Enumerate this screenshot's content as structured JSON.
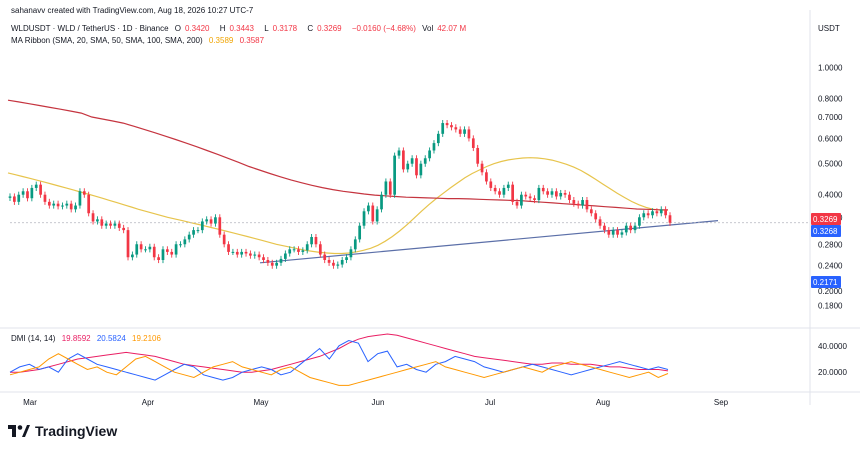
{
  "header": {
    "created": "sahanavv created with TradingView.com, Aug 18, 2026 10:27 UTC-7",
    "symbol": "WLDUSDT · WLD / TetherUS · 1D · Binance",
    "o_label": "O",
    "o_value": "0.3420",
    "h_label": "H",
    "h_value": "0.3443",
    "l_label": "L",
    "l_value": "0.3178",
    "c_label": "C",
    "c_value": "0.3269",
    "change": "−0.0160 (−4.68%)",
    "vol_label": "Vol",
    "vol_value": "42.07 M",
    "ma_label": "MA Ribbon (SMA, 20, SMA, 50, SMA, 100, SMA, 200)",
    "ma_val1": "0.3589",
    "ma_val2": "0.3587",
    "dmi_label": "DMI (14, 14)",
    "dmi_val1": "19.8592",
    "dmi_val2": "20.5824",
    "dmi_val3": "19.2106"
  },
  "brand": {
    "name": "TradingView"
  },
  "colors": {
    "up": "#089981",
    "down": "#f23645",
    "ma50": "#e7c44c",
    "ma200": "#c5343f",
    "trendline": "#5b6fa8",
    "dmi_plus": "#2962ff",
    "dmi_minus": "#ff9800",
    "adx": "#e91e63",
    "last_price": "#f23645",
    "trend_price": "#2962ff",
    "support": "#2962ff"
  },
  "chart_data": {
    "type": "candlestick",
    "title": "WLDUSDT · WLD / TetherUS · 1D · Binance",
    "currency": "USDT",
    "x_ticks": [
      "Mar",
      "Apr",
      "May",
      "Jun",
      "Jul",
      "Aug",
      "Sep"
    ],
    "y_ticks": [
      "1.0000",
      "0.8000",
      "0.7000",
      "0.6000",
      "0.5000",
      "0.4000",
      "0.3400",
      "0.2800",
      "0.2400",
      "0.2000",
      "0.1800"
    ],
    "y_scale": "log",
    "ylim": [
      0.16,
      1.15
    ],
    "price_labels": [
      {
        "value": "0.3269",
        "kind": "last"
      },
      {
        "value": "0.3268",
        "kind": "trendline"
      },
      {
        "value": "0.2171",
        "kind": "level"
      }
    ],
    "close_series": [
      0.395,
      0.38,
      0.4,
      0.41,
      0.39,
      0.42,
      0.43,
      0.4,
      0.38,
      0.37,
      0.375,
      0.368,
      0.37,
      0.375,
      0.36,
      0.37,
      0.41,
      0.4,
      0.35,
      0.33,
      0.335,
      0.32,
      0.325,
      0.32,
      0.325,
      0.315,
      0.31,
      0.255,
      0.26,
      0.28,
      0.27,
      0.27,
      0.275,
      0.255,
      0.25,
      0.27,
      0.265,
      0.26,
      0.28,
      0.28,
      0.29,
      0.3,
      0.31,
      0.31,
      0.33,
      0.335,
      0.325,
      0.34,
      0.3,
      0.28,
      0.265,
      0.265,
      0.26,
      0.265,
      0.262,
      0.258,
      0.26,
      0.255,
      0.25,
      0.245,
      0.24,
      0.245,
      0.252,
      0.262,
      0.27,
      0.27,
      0.265,
      0.268,
      0.28,
      0.295,
      0.28,
      0.26,
      0.25,
      0.245,
      0.24,
      0.242,
      0.25,
      0.255,
      0.27,
      0.29,
      0.32,
      0.355,
      0.37,
      0.33,
      0.36,
      0.4,
      0.44,
      0.4,
      0.53,
      0.55,
      0.48,
      0.5,
      0.52,
      0.46,
      0.5,
      0.52,
      0.55,
      0.58,
      0.62,
      0.67,
      0.66,
      0.65,
      0.64,
      0.62,
      0.64,
      0.6,
      0.56,
      0.5,
      0.47,
      0.44,
      0.42,
      0.41,
      0.4,
      0.42,
      0.43,
      0.38,
      0.37,
      0.4,
      0.395,
      0.39,
      0.385,
      0.42,
      0.41,
      0.4,
      0.41,
      0.395,
      0.405,
      0.4,
      0.385,
      0.375,
      0.37,
      0.385,
      0.36,
      0.35,
      0.335,
      0.32,
      0.31,
      0.3,
      0.31,
      0.3,
      0.305,
      0.32,
      0.31,
      0.32,
      0.34,
      0.35,
      0.345,
      0.355,
      0.35,
      0.36,
      0.345,
      0.3269
    ],
    "series": [
      {
        "name": "SMA 50",
        "values": [
          0.468,
          0.462,
          0.456,
          0.45,
          0.444,
          0.438,
          0.432,
          0.426,
          0.42,
          0.414,
          0.408,
          0.402,
          0.396,
          0.39,
          0.384,
          0.378,
          0.372,
          0.366,
          0.36,
          0.355,
          0.35,
          0.345,
          0.34,
          0.336,
          0.332,
          0.328,
          0.324,
          0.32,
          0.316,
          0.312,
          0.308,
          0.304,
          0.3,
          0.296,
          0.292,
          0.288,
          0.284,
          0.28,
          0.277,
          0.274,
          0.271,
          0.268,
          0.266,
          0.264,
          0.263,
          0.262,
          0.262,
          0.263,
          0.265,
          0.268,
          0.272,
          0.278,
          0.286,
          0.296,
          0.308,
          0.322,
          0.338,
          0.355,
          0.372,
          0.388,
          0.404,
          0.42,
          0.436,
          0.452,
          0.466,
          0.478,
          0.49,
          0.5,
          0.508,
          0.514,
          0.518,
          0.521,
          0.522,
          0.521,
          0.518,
          0.513,
          0.506,
          0.498,
          0.488,
          0.476,
          0.462,
          0.447,
          0.432,
          0.418,
          0.404,
          0.392,
          0.381,
          0.372,
          0.365,
          0.36,
          0.358,
          0.358
        ]
      },
      {
        "name": "SMA 200",
        "values": [
          0.79,
          0.78,
          0.77,
          0.76,
          0.75,
          0.74,
          0.73,
          0.72,
          0.7,
          0.69,
          0.68,
          0.67,
          0.655,
          0.64,
          0.625,
          0.61,
          0.595,
          0.58,
          0.565,
          0.55,
          0.535,
          0.52,
          0.505,
          0.49,
          0.478,
          0.466,
          0.455,
          0.445,
          0.436,
          0.428,
          0.421,
          0.415,
          0.41,
          0.406,
          0.402,
          0.399,
          0.397,
          0.395,
          0.393,
          0.392,
          0.391,
          0.39,
          0.389,
          0.389,
          0.388,
          0.387,
          0.386,
          0.385,
          0.384,
          0.383,
          0.381,
          0.379,
          0.377,
          0.375,
          0.373,
          0.371,
          0.369,
          0.367,
          0.365,
          0.363,
          0.361,
          0.36,
          0.359,
          0.3587
        ]
      }
    ],
    "trendline": {
      "from": [
        0,
        0.245
      ],
      "to": [
        1,
        0.332
      ]
    },
    "dmi": {
      "name": "DMI (14, 14)",
      "y_ticks": [
        "40.0000",
        "20.0000"
      ],
      "ylim": [
        8,
        52
      ],
      "adx": [
        20,
        20,
        21,
        22,
        24,
        26,
        28,
        30,
        31,
        32,
        33,
        34,
        35,
        34,
        33,
        32,
        30,
        28,
        26,
        25,
        24,
        23,
        22,
        21,
        20,
        20,
        21,
        22,
        24,
        26,
        28,
        30,
        32,
        35,
        38,
        42,
        45,
        47,
        48,
        49,
        48,
        46,
        44,
        42,
        40,
        38,
        36,
        34,
        32,
        31,
        30,
        29,
        28,
        27,
        26,
        26,
        27,
        27,
        26,
        26,
        26,
        25,
        24,
        24,
        23,
        22,
        22,
        22,
        21
      ],
      "plus_di": [
        20,
        24,
        26,
        22,
        24,
        20,
        30,
        34,
        30,
        26,
        24,
        22,
        20,
        18,
        16,
        14,
        18,
        22,
        26,
        24,
        18,
        16,
        14,
        16,
        20,
        22,
        24,
        22,
        18,
        20,
        26,
        32,
        38,
        30,
        40,
        44,
        42,
        28,
        34,
        36,
        24,
        26,
        22,
        20,
        26,
        28,
        32,
        30,
        28,
        24,
        22,
        20,
        22,
        24,
        26,
        24,
        22,
        20,
        18,
        20,
        22,
        24,
        26,
        28,
        26,
        24,
        22,
        24,
        22
      ],
      "minus_di": [
        18,
        20,
        22,
        24,
        30,
        34,
        30,
        26,
        22,
        24,
        20,
        18,
        24,
        30,
        32,
        28,
        24,
        20,
        18,
        16,
        20,
        24,
        26,
        28,
        24,
        22,
        20,
        18,
        22,
        24,
        20,
        16,
        14,
        12,
        10,
        10,
        12,
        14,
        16,
        18,
        20,
        22,
        24,
        26,
        28,
        24,
        22,
        20,
        18,
        16,
        18,
        20,
        22,
        24,
        22,
        20,
        24,
        26,
        28,
        26,
        24,
        22,
        20,
        18,
        16,
        18,
        20,
        16,
        19
      ]
    }
  }
}
